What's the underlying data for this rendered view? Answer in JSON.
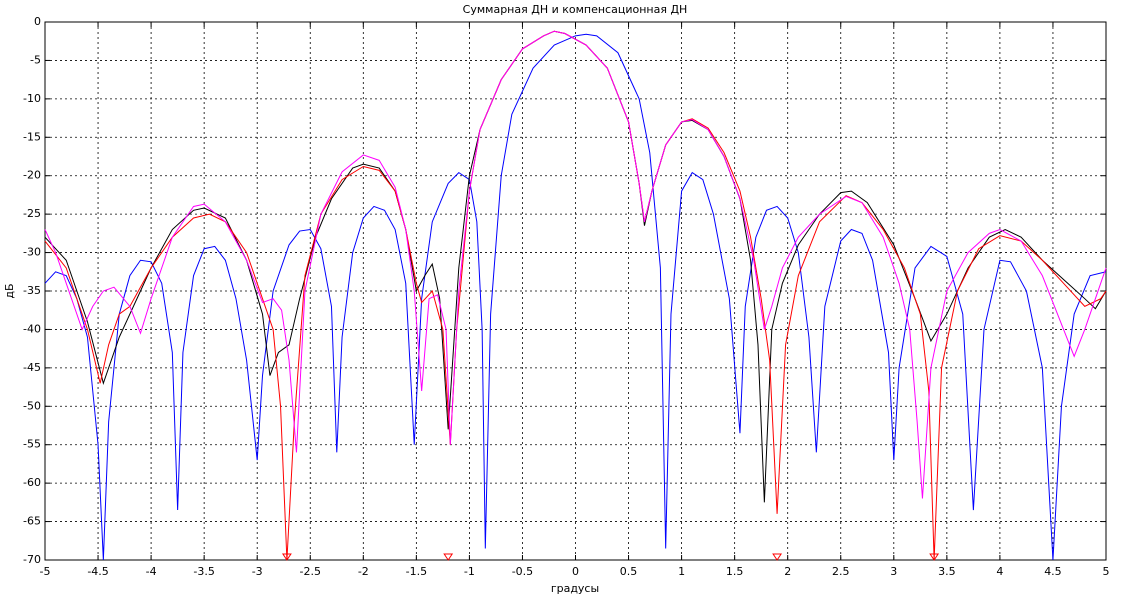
{
  "chart_data": {
    "type": "line",
    "title": "Суммарная ДН и компенсационная ДН",
    "xlabel": "градусы",
    "ylabel": "дБ",
    "xlim": [
      -5,
      5
    ],
    "ylim": [
      -70,
      0
    ],
    "xticks": [
      -5,
      -4.5,
      -4,
      -3.5,
      -3,
      -2.5,
      -2,
      -1.5,
      -1,
      -0.5,
      0,
      0.5,
      1,
      1.5,
      2,
      2.5,
      3,
      3.5,
      4,
      4.5,
      5
    ],
    "yticks": [
      0,
      -5,
      -10,
      -15,
      -20,
      -25,
      -30,
      -35,
      -40,
      -45,
      -50,
      -55,
      -60,
      -65,
      -70
    ],
    "grid": true,
    "series": [
      {
        "color": "#0000ff",
        "x": [
          -5,
          -4.9,
          -4.8,
          -4.7,
          -4.6,
          -4.5,
          -4.45,
          -4.4,
          -4.3,
          -4.2,
          -4.1,
          -4.0,
          -3.9,
          -3.8,
          -3.75,
          -3.7,
          -3.6,
          -3.5,
          -3.4,
          -3.3,
          -3.2,
          -3.1,
          -3.0,
          -2.95,
          -2.85,
          -2.7,
          -2.6,
          -2.5,
          -2.4,
          -2.3,
          -2.25,
          -2.2,
          -2.1,
          -2.0,
          -1.9,
          -1.8,
          -1.7,
          -1.6,
          -1.52,
          -1.45,
          -1.35,
          -1.2,
          -1.1,
          -1.0,
          -0.93,
          -0.88,
          -0.85,
          -0.8,
          -0.7,
          -0.6,
          -0.4,
          -0.2,
          0,
          0.1,
          0.2,
          0.4,
          0.6,
          0.7,
          0.8,
          0.85,
          0.9,
          1.0,
          1.1,
          1.2,
          1.3,
          1.45,
          1.55,
          1.6,
          1.7,
          1.8,
          1.9,
          2.0,
          2.1,
          2.2,
          2.27,
          2.35,
          2.5,
          2.6,
          2.7,
          2.8,
          2.95,
          3.0,
          3.05,
          3.2,
          3.35,
          3.5,
          3.65,
          3.75,
          3.85,
          4.0,
          4.1,
          4.25,
          4.4,
          4.5,
          4.58,
          4.7,
          4.85,
          5.0
        ],
        "values": [
          -34,
          -32.5,
          -33,
          -36,
          -41,
          -55,
          -70,
          -52,
          -38,
          -33,
          -31,
          -31.2,
          -34,
          -43,
          -63.5,
          -43,
          -33,
          -29.5,
          -29.2,
          -31,
          -36,
          -44,
          -57,
          -46,
          -35,
          -29,
          -27.2,
          -27,
          -29.5,
          -37,
          -56,
          -41,
          -30,
          -25.5,
          -24,
          -24.5,
          -27,
          -34,
          -55,
          -36,
          -26,
          -21,
          -19.6,
          -20.5,
          -26,
          -40,
          -68.5,
          -38,
          -20,
          -12,
          -6,
          -3,
          -1.8,
          -1.6,
          -1.8,
          -4,
          -10,
          -17,
          -32,
          -68.5,
          -38,
          -22,
          -19.6,
          -20.5,
          -25,
          -36,
          -53.5,
          -37,
          -28,
          -24.5,
          -24,
          -25.5,
          -30,
          -41,
          -56,
          -37,
          -28.5,
          -27,
          -27.5,
          -31,
          -43,
          -57,
          -45,
          -32,
          -29.2,
          -30.5,
          -38,
          -63.5,
          -40,
          -31,
          -31.2,
          -35,
          -45,
          -70,
          -50,
          -38,
          -33,
          -32.5
        ]
      },
      {
        "color": "#000000",
        "x": [
          -5,
          -4.8,
          -4.6,
          -4.45,
          -4.3,
          -4.1,
          -4.0,
          -3.8,
          -3.6,
          -3.5,
          -3.3,
          -3.1,
          -2.95,
          -2.88,
          -2.8,
          -2.7,
          -2.6,
          -2.45,
          -2.3,
          -2.1,
          -2.0,
          -1.85,
          -1.7,
          -1.6,
          -1.5,
          -1.42,
          -1.35,
          -1.28,
          -1.2,
          -1.1,
          -1.0,
          -0.9,
          -0.7,
          -0.5,
          -0.3,
          -0.2,
          -0.1,
          0.1,
          0.3,
          0.5,
          0.6,
          0.65,
          0.72,
          0.85,
          1.0,
          1.1,
          1.25,
          1.4,
          1.55,
          1.65,
          1.72,
          1.78,
          1.85,
          1.95,
          2.1,
          2.3,
          2.5,
          2.6,
          2.75,
          3.0,
          3.2,
          3.35,
          3.5,
          3.7,
          3.9,
          4.05,
          4.2,
          4.4,
          4.6,
          4.8,
          4.9,
          5.0
        ],
        "values": [
          -28,
          -31,
          -39,
          -47,
          -41,
          -35,
          -32,
          -27,
          -24.5,
          -24.2,
          -25.5,
          -31,
          -38,
          -46,
          -43,
          -42,
          -36,
          -28,
          -23,
          -19,
          -18.5,
          -19,
          -22,
          -27,
          -35,
          -33,
          -31.5,
          -36,
          -53,
          -32,
          -20,
          -14,
          -7.5,
          -3.5,
          -1.8,
          -1.2,
          -1.5,
          -3,
          -6,
          -13,
          -21,
          -26.5,
          -22,
          -16,
          -13,
          -12.8,
          -14,
          -17.5,
          -23,
          -31,
          -42,
          -62.5,
          -40,
          -34,
          -29,
          -25,
          -22.2,
          -22,
          -23.5,
          -29,
          -36,
          -41.5,
          -38,
          -32,
          -28,
          -27,
          -28,
          -31,
          -33.5,
          -36,
          -37.3,
          -35
        ]
      },
      {
        "color": "#ff0000",
        "x": [
          -5,
          -4.8,
          -4.6,
          -4.48,
          -4.4,
          -4.3,
          -4.2,
          -4.0,
          -3.8,
          -3.6,
          -3.45,
          -3.3,
          -3.1,
          -2.95,
          -2.85,
          -2.78,
          -2.72,
          -2.65,
          -2.55,
          -2.4,
          -2.2,
          -2.0,
          -1.85,
          -1.7,
          -1.6,
          -1.5,
          -1.45,
          -1.35,
          -1.25,
          -1.18,
          -1.12,
          -1.0,
          -0.9,
          -0.7,
          -0.5,
          -0.3,
          -0.2,
          -0.1,
          0.1,
          0.3,
          0.5,
          0.6,
          0.65,
          0.72,
          0.85,
          1.0,
          1.1,
          1.25,
          1.4,
          1.55,
          1.65,
          1.75,
          1.83,
          1.9,
          1.98,
          2.1,
          2.3,
          2.55,
          2.7,
          2.9,
          3.1,
          3.25,
          3.33,
          3.38,
          3.45,
          3.6,
          3.8,
          4.0,
          4.2,
          4.4,
          4.6,
          4.8,
          4.95,
          5.0
        ],
        "values": [
          -28.5,
          -32,
          -40,
          -47,
          -42,
          -38,
          -37,
          -32,
          -28,
          -25.5,
          -25,
          -26,
          -30,
          -36,
          -40,
          -50,
          -70,
          -52,
          -33,
          -25,
          -20.5,
          -18.8,
          -19.3,
          -22,
          -27,
          -34,
          -36.5,
          -35,
          -40,
          -55,
          -40,
          -22,
          -14,
          -7.5,
          -3.5,
          -1.8,
          -1.2,
          -1.5,
          -3,
          -6,
          -13,
          -21,
          -26,
          -22,
          -16,
          -13,
          -12.6,
          -13.8,
          -17,
          -22,
          -28,
          -36,
          -44,
          -64,
          -42,
          -33,
          -26,
          -22.6,
          -23.5,
          -27,
          -32,
          -38,
          -48,
          -70,
          -45,
          -35,
          -29.5,
          -27.8,
          -28.5,
          -31,
          -34,
          -37,
          -36,
          -35
        ]
      },
      {
        "color": "#ff00ff",
        "x": [
          -5,
          -4.9,
          -4.75,
          -4.65,
          -4.55,
          -4.45,
          -4.35,
          -4.2,
          -4.1,
          -4.0,
          -3.8,
          -3.6,
          -3.5,
          -3.3,
          -3.1,
          -2.95,
          -2.85,
          -2.77,
          -2.7,
          -2.63,
          -2.55,
          -2.4,
          -2.2,
          -2.0,
          -1.85,
          -1.7,
          -1.6,
          -1.52,
          -1.45,
          -1.38,
          -1.3,
          -1.22,
          -1.18,
          -1.1,
          -1.0,
          -0.9,
          -0.7,
          -0.5,
          -0.3,
          -0.2,
          -0.1,
          0.1,
          0.3,
          0.5,
          0.6,
          0.65,
          0.72,
          0.85,
          1.0,
          1.1,
          1.25,
          1.4,
          1.55,
          1.68,
          1.78,
          1.85,
          1.95,
          2.1,
          2.3,
          2.55,
          2.7,
          2.9,
          3.05,
          3.15,
          3.22,
          3.27,
          3.35,
          3.5,
          3.7,
          3.9,
          4.0,
          4.2,
          4.4,
          4.6,
          4.7,
          4.8,
          4.95,
          5.0
        ],
        "values": [
          -27,
          -30,
          -36,
          -40,
          -37,
          -35,
          -34.5,
          -37,
          -40.5,
          -36,
          -28,
          -24,
          -23.7,
          -26,
          -31,
          -36.5,
          -36,
          -37.5,
          -44,
          -56,
          -35,
          -25,
          -19.5,
          -17.3,
          -18,
          -21.5,
          -27,
          -35,
          -48,
          -36,
          -35.5,
          -40,
          -55,
          -35,
          -22,
          -14,
          -7.5,
          -3.5,
          -1.8,
          -1.2,
          -1.5,
          -3,
          -6,
          -13,
          -21,
          -26,
          -22,
          -16,
          -13,
          -12.7,
          -14,
          -17.5,
          -23,
          -31,
          -40,
          -37,
          -32,
          -28,
          -25,
          -22.7,
          -23.5,
          -28,
          -34,
          -40,
          -52,
          -62,
          -45,
          -35,
          -30,
          -27.5,
          -27,
          -28.5,
          -33,
          -40,
          -43.5,
          -40,
          -34,
          -32
        ]
      }
    ],
    "markers": {
      "color": "#ff0000",
      "x": [
        -2.72,
        -1.2,
        1.9,
        3.38
      ],
      "values": [
        -70,
        -70,
        -70,
        -70
      ]
    }
  }
}
